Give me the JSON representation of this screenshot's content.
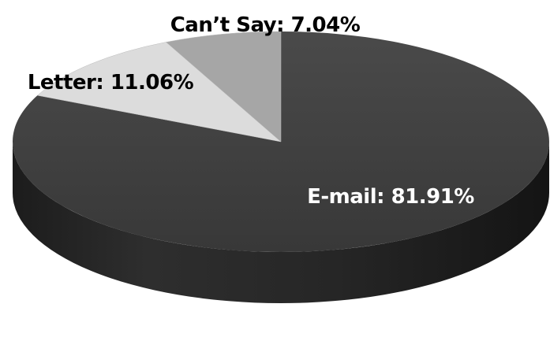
{
  "chart_data": {
    "type": "pie",
    "style": "3d",
    "slices": [
      {
        "label": "E-mail",
        "value": 81.91,
        "display": "E-mail: 81.91%",
        "color": "#3a3a3a",
        "label_color": "#ffffff"
      },
      {
        "label": "Letter",
        "value": 11.06,
        "display": "Letter: 11.06%",
        "color": "#dcdcdc",
        "label_color": "#000000"
      },
      {
        "label": "Can’t Say",
        "value": 7.04,
        "display": "Can’t Say: 7.04%",
        "color": "#a6a6a6",
        "label_color": "#000000"
      }
    ]
  }
}
